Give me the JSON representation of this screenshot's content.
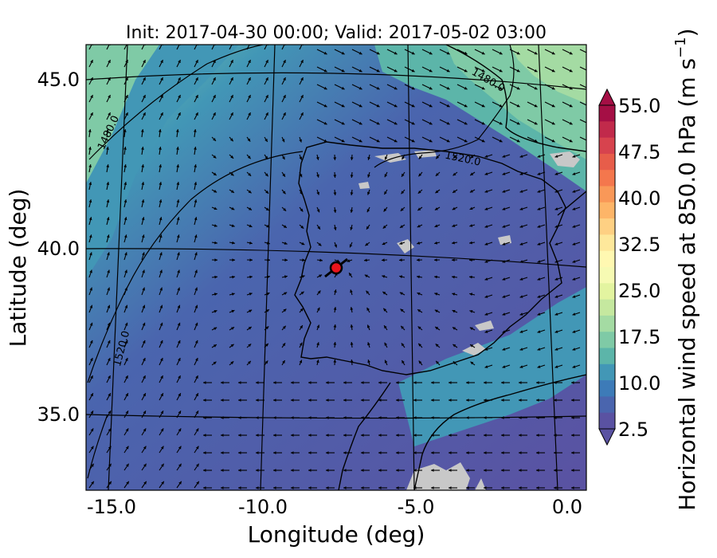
{
  "title": "Init: 2017-04-30 00:00; Valid: 2017-05-02 03:00",
  "xlabel": "Longitude (deg)",
  "ylabel": "Latitude (deg)",
  "colorbar": {
    "label": "Horizontal wind speed at 850.0 hPa (m s",
    "label_exp": "−1",
    "label_tail": ")",
    "ticks": [
      "55.0",
      "47.5",
      "40.0",
      "32.5",
      "25.0",
      "17.5",
      "10.0",
      "2.5"
    ],
    "colors": [
      "#a50f45",
      "#c12a4b",
      "#d7434e",
      "#e75d4a",
      "#f4774d",
      "#f99858",
      "#fdb568",
      "#fed083",
      "#fee89b",
      "#fff8b1",
      "#f6fab3",
      "#e3f4a0",
      "#c5e89f",
      "#a4dba3",
      "#7fcaa6",
      "#5cb5a9",
      "#4297b6",
      "#3d7bb8",
      "#4a65ae",
      "#5a52a2"
    ],
    "extend": "both"
  },
  "axes": {
    "x_ticks": [
      "-15.0",
      "-10.0",
      "-5.0",
      "0.0"
    ],
    "y_ticks": [
      "45.0",
      "40.0",
      "35.0"
    ],
    "xlim": [
      -16,
      0.2
    ],
    "ylim": [
      32.8,
      46.2
    ]
  },
  "contour_labels": [
    "1480.0",
    "1480.0",
    "1520.0",
    "1520.0"
  ],
  "field": "Horizontal wind speed at 850 hPa",
  "colors": {
    "land_mask": "#c8c8c8",
    "marker": "#e8141b",
    "contour": "#000000"
  }
}
